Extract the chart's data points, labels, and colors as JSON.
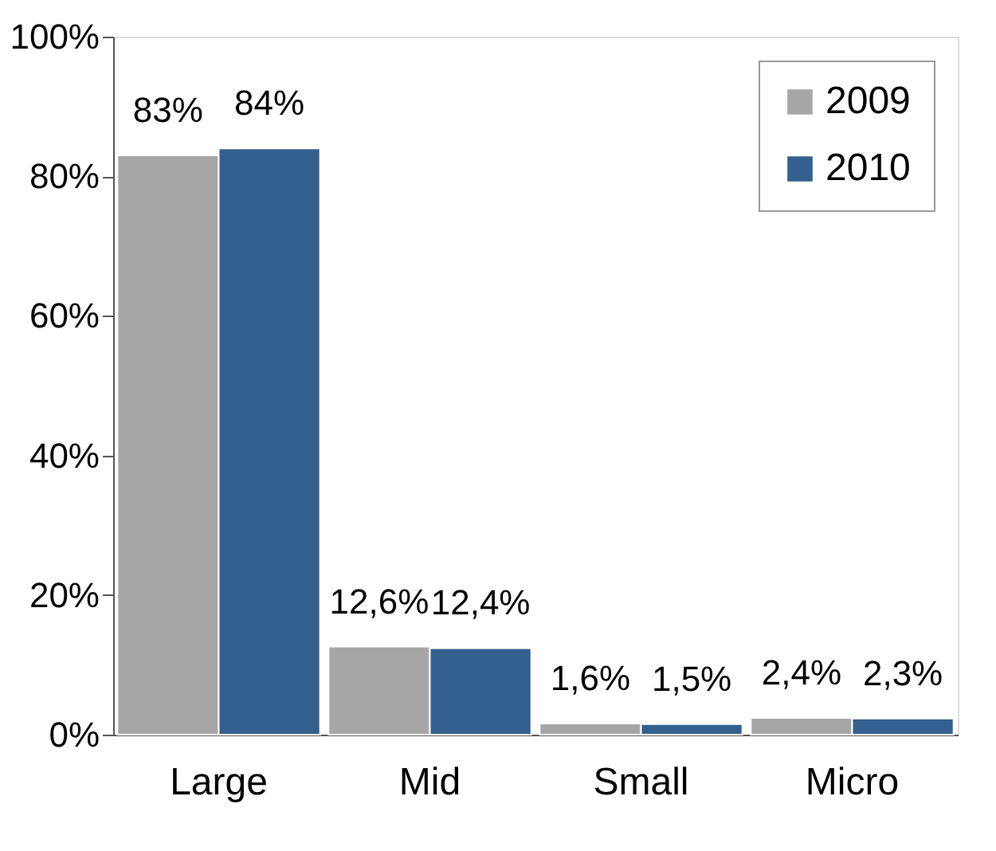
{
  "chart_data": {
    "type": "bar",
    "categories": [
      "Large",
      "Mid",
      "Small",
      "Micro"
    ],
    "series": [
      {
        "name": "2009",
        "color": "#a6a6a6",
        "values": [
          83,
          12.6,
          1.6,
          2.4
        ],
        "value_labels": [
          "83%",
          "12,6%",
          "1,6%",
          "2,4%"
        ]
      },
      {
        "name": "2010",
        "color": "#34608f",
        "values": [
          84,
          12.4,
          1.5,
          2.3
        ],
        "value_labels": [
          "84%",
          "12,4%",
          "1,5%",
          "2,3%"
        ]
      }
    ],
    "ylim": [
      0,
      100
    ],
    "yticks": [
      {
        "value": 0,
        "label": "0%"
      },
      {
        "value": 20,
        "label": "20%"
      },
      {
        "value": 40,
        "label": "40%"
      },
      {
        "value": 60,
        "label": "60%"
      },
      {
        "value": 80,
        "label": "80%"
      },
      {
        "value": 100,
        "label": "100%"
      }
    ],
    "grid": false,
    "legend": "top right"
  }
}
